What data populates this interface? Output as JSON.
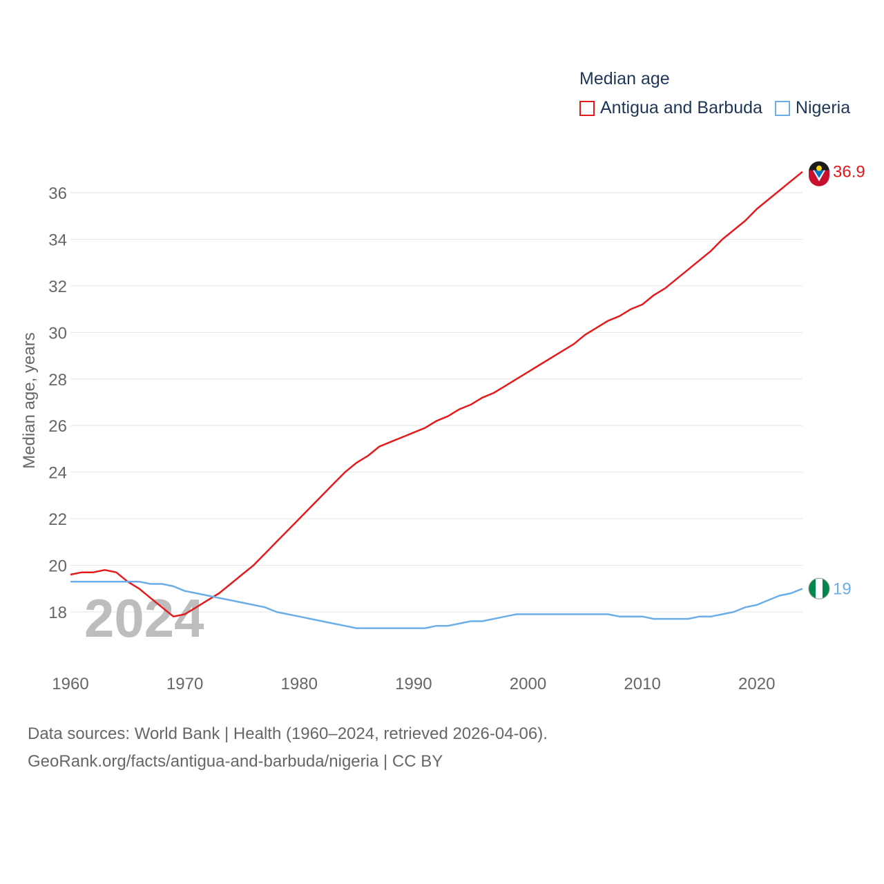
{
  "colors": {
    "antigua": "#e31a1c",
    "nigeria": "#6aaee8",
    "grid": "#e6e6e6",
    "text": "#666666",
    "legend_text": "#1d3557",
    "year_watermark": "#bdbdbd"
  },
  "legend": {
    "title": "Median age",
    "items": [
      {
        "label": "Antigua and Barbuda",
        "color": "#e31a1c"
      },
      {
        "label": "Nigeria",
        "color": "#6aaee8"
      }
    ]
  },
  "year_watermark": "2024",
  "sources": {
    "line1": "Data sources: World Bank | Health (1960–2024, retrieved 2026-04-06).",
    "line2": "GeoRank.org/facts/antigua-and-barbuda/nigeria | CC BY"
  },
  "chart_data": {
    "type": "line",
    "title": "Median age",
    "xlabel": "",
    "ylabel": "Median age, years",
    "xlim": [
      1960,
      2024
    ],
    "ylim": [
      16.5,
      37.5
    ],
    "xticks": [
      1960,
      1970,
      1980,
      1990,
      2000,
      2010,
      2020
    ],
    "yticks": [
      18,
      20,
      22,
      24,
      26,
      28,
      30,
      32,
      34,
      36
    ],
    "grid": true,
    "legend_position": "top-right",
    "x": [
      1960,
      1961,
      1962,
      1963,
      1964,
      1965,
      1966,
      1967,
      1968,
      1969,
      1970,
      1971,
      1972,
      1973,
      1974,
      1975,
      1976,
      1977,
      1978,
      1979,
      1980,
      1981,
      1982,
      1983,
      1984,
      1985,
      1986,
      1987,
      1988,
      1989,
      1990,
      1991,
      1992,
      1993,
      1994,
      1995,
      1996,
      1997,
      1998,
      1999,
      2000,
      2001,
      2002,
      2003,
      2004,
      2005,
      2006,
      2007,
      2008,
      2009,
      2010,
      2011,
      2012,
      2013,
      2014,
      2015,
      2016,
      2017,
      2018,
      2019,
      2020,
      2021,
      2022,
      2023,
      2024
    ],
    "series": [
      {
        "name": "Antigua and Barbuda",
        "color": "#e31a1c",
        "end_label": "36.9",
        "values": [
          19.6,
          19.7,
          19.7,
          19.8,
          19.7,
          19.3,
          19.0,
          18.6,
          18.2,
          17.8,
          17.9,
          18.2,
          18.5,
          18.8,
          19.2,
          19.6,
          20.0,
          20.5,
          21.0,
          21.5,
          22.0,
          22.5,
          23.0,
          23.5,
          24.0,
          24.4,
          24.7,
          25.1,
          25.3,
          25.5,
          25.7,
          25.9,
          26.2,
          26.4,
          26.7,
          26.9,
          27.2,
          27.4,
          27.7,
          28.0,
          28.3,
          28.6,
          28.9,
          29.2,
          29.5,
          29.9,
          30.2,
          30.5,
          30.7,
          31.0,
          31.2,
          31.6,
          31.9,
          32.3,
          32.7,
          33.1,
          33.5,
          34.0,
          34.4,
          34.8,
          35.3,
          35.7,
          36.1,
          36.5,
          36.9
        ]
      },
      {
        "name": "Nigeria",
        "color": "#6aaee8",
        "end_label": "19",
        "values": [
          19.3,
          19.3,
          19.3,
          19.3,
          19.3,
          19.3,
          19.3,
          19.2,
          19.2,
          19.1,
          18.9,
          18.8,
          18.7,
          18.6,
          18.5,
          18.4,
          18.3,
          18.2,
          18.0,
          17.9,
          17.8,
          17.7,
          17.6,
          17.5,
          17.4,
          17.3,
          17.3,
          17.3,
          17.3,
          17.3,
          17.3,
          17.3,
          17.4,
          17.4,
          17.5,
          17.6,
          17.6,
          17.7,
          17.8,
          17.9,
          17.9,
          17.9,
          17.9,
          17.9,
          17.9,
          17.9,
          17.9,
          17.9,
          17.8,
          17.8,
          17.8,
          17.7,
          17.7,
          17.7,
          17.7,
          17.8,
          17.8,
          17.9,
          18.0,
          18.2,
          18.3,
          18.5,
          18.7,
          18.8,
          19.0
        ]
      }
    ]
  }
}
